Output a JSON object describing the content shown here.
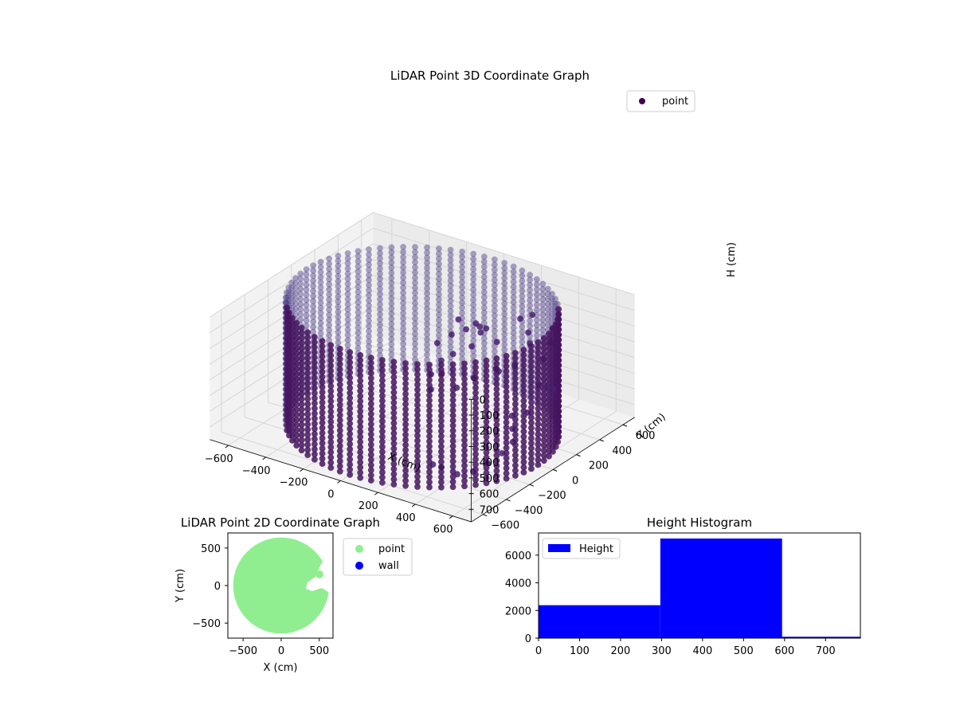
{
  "chart_data": [
    {
      "type": "scatter",
      "projection": "3d",
      "title": "LiDAR Point 3D Coordinate Graph",
      "xlabel": "X (cm)",
      "ylabel": "Y (cm)",
      "zlabel": "H (cm)",
      "xlim": [
        -700,
        700
      ],
      "ylim": [
        -700,
        700
      ],
      "zlim": [
        0,
        780
      ],
      "z_axis_inverted": true,
      "x_ticks": [
        -600,
        -400,
        -200,
        0,
        200,
        400,
        600
      ],
      "y_ticks": [
        -600,
        -400,
        -200,
        0,
        200,
        400,
        600
      ],
      "z_ticks": [
        0,
        100,
        200,
        300,
        400,
        500,
        600,
        700
      ],
      "grid": true,
      "legend": {
        "position": "top-right",
        "entries": [
          "point"
        ]
      },
      "series": [
        {
          "name": "point",
          "color": "#440154",
          "cylinder": {
            "center": [
              0,
              0
            ],
            "radius": 620,
            "h_range": [
              0,
              780
            ],
            "angular_points": 72,
            "height_levels": 24
          },
          "obstacle_points": [
            [
              100,
              150,
              120
            ],
            [
              150,
              220,
              160
            ],
            [
              180,
              260,
              200
            ],
            [
              120,
              300,
              230
            ],
            [
              60,
              280,
              260
            ],
            [
              200,
              180,
              180
            ],
            [
              250,
              240,
              250
            ],
            [
              140,
              200,
              300
            ],
            [
              90,
              120,
              330
            ],
            [
              300,
              360,
              140
            ],
            [
              340,
              400,
              120
            ],
            [
              380,
              300,
              170
            ],
            [
              420,
              250,
              200
            ],
            [
              460,
              380,
              150
            ],
            [
              500,
              300,
              190
            ],
            [
              520,
              200,
              240
            ],
            [
              420,
              120,
              280
            ],
            [
              360,
              80,
              320
            ],
            [
              300,
              150,
              360
            ],
            [
              240,
              60,
              400
            ],
            [
              200,
              120,
              440
            ],
            [
              160,
              40,
              480
            ],
            [
              480,
              0,
              520
            ],
            [
              520,
              -60,
              560
            ],
            [
              560,
              -120,
              600
            ],
            [
              540,
              -180,
              650
            ],
            [
              500,
              -240,
              700
            ],
            [
              460,
              -300,
              740
            ],
            [
              400,
              -340,
              760
            ],
            [
              340,
              -380,
              720
            ],
            [
              20,
              220,
              280
            ],
            [
              -20,
              160,
              320
            ],
            [
              40,
              100,
              380
            ],
            [
              80,
              40,
              420
            ],
            [
              10,
              60,
              460
            ],
            [
              60,
              -20,
              500
            ],
            [
              600,
              40,
              300
            ],
            [
              610,
              100,
              340
            ],
            [
              600,
              160,
              380
            ],
            [
              590,
              -40,
              440
            ],
            [
              570,
              220,
              420
            ],
            [
              320,
              -420,
              690
            ]
          ]
        }
      ]
    },
    {
      "type": "scatter",
      "title": "LiDAR Point 2D Coordinate Graph",
      "xlabel": "X (cm)",
      "ylabel": "Y (cm)",
      "xlim": [
        -700,
        680
      ],
      "ylim": [
        -700,
        700
      ],
      "x_ticks": [
        -500,
        0,
        500
      ],
      "y_ticks": [
        -500,
        0,
        500
      ],
      "legend": {
        "position": "outside right",
        "entries": [
          "point",
          "wall"
        ]
      },
      "series": [
        {
          "name": "point",
          "color": "#90ee90",
          "shape": {
            "center": [
              0,
              0
            ],
            "radius": 630
          }
        },
        {
          "name": "wall",
          "color": "#0000ff",
          "values": []
        }
      ]
    },
    {
      "type": "bar",
      "subtype": "histogram",
      "title": "Height Histogram",
      "xlim": [
        0,
        785
      ],
      "ylim": [
        0,
        7600
      ],
      "x_ticks": [
        0,
        100,
        200,
        300,
        400,
        500,
        600,
        700
      ],
      "y_ticks": [
        0,
        2000,
        4000,
        6000
      ],
      "legend": {
        "position": "top-left",
        "entries": [
          "Height"
        ]
      },
      "series": [
        {
          "name": "Height",
          "color": "#0000ff",
          "bins": [
            {
              "range": [
                0,
                297
              ],
              "value": 2380
            },
            {
              "range": [
                297,
                594
              ],
              "value": 7200
            },
            {
              "range": [
                594,
                891
              ],
              "value": 100
            }
          ]
        }
      ]
    }
  ]
}
